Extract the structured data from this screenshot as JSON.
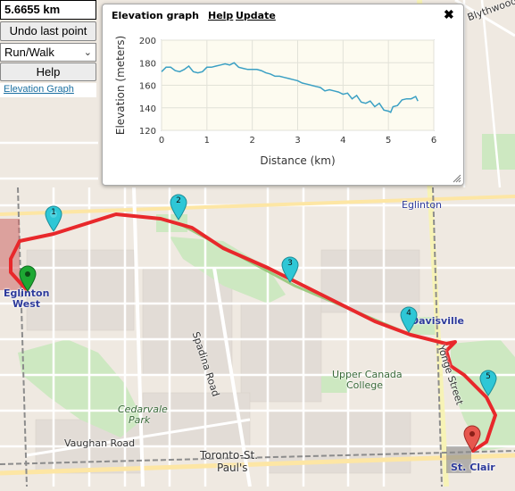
{
  "controls": {
    "distance": "5.6655 km",
    "undo_label": "Undo last point",
    "mode_value": "Run/Walk",
    "help_label": "Help",
    "elevation_link": "Elevation Graph"
  },
  "elevation_window": {
    "title": "Elevation graph",
    "help_link": "Help",
    "update_link": "Update",
    "close_symbol": "✖"
  },
  "chart_data": {
    "type": "line",
    "xlabel": "Distance (km)",
    "ylabel": "Elevation (meters)",
    "xlim": [
      0,
      6
    ],
    "ylim": [
      120,
      200
    ],
    "xticks": [
      "0",
      "1",
      "2",
      "3",
      "4",
      "5",
      "6"
    ],
    "yticks": [
      "120",
      "140",
      "160",
      "180",
      "200"
    ],
    "grid": true,
    "color": "#3ba0c4",
    "x": [
      0,
      0.1,
      0.2,
      0.3,
      0.4,
      0.5,
      0.6,
      0.7,
      0.8,
      0.9,
      1.0,
      1.1,
      1.2,
      1.3,
      1.4,
      1.5,
      1.6,
      1.7,
      1.8,
      1.9,
      2.0,
      2.1,
      2.2,
      2.3,
      2.4,
      2.5,
      2.6,
      2.7,
      2.8,
      2.9,
      3.0,
      3.1,
      3.2,
      3.3,
      3.4,
      3.5,
      3.6,
      3.7,
      3.8,
      3.9,
      4.0,
      4.1,
      4.2,
      4.3,
      4.4,
      4.5,
      4.6,
      4.7,
      4.8,
      4.9,
      5.0,
      5.05,
      5.1,
      5.2,
      5.3,
      5.4,
      5.5,
      5.6,
      5.65
    ],
    "y": [
      172,
      176,
      176,
      173,
      172,
      174,
      177,
      172,
      171,
      172,
      176,
      176,
      177,
      178,
      179,
      178,
      180,
      176,
      175,
      174,
      174,
      174,
      173,
      171,
      170,
      168,
      168,
      167,
      166,
      165,
      164,
      162,
      161,
      160,
      159,
      158,
      155,
      156,
      155,
      154,
      152,
      153,
      148,
      151,
      145,
      144,
      146,
      141,
      144,
      138,
      137,
      136,
      141,
      142,
      147,
      148,
      148,
      150,
      146
    ]
  },
  "map": {
    "labels": {
      "eglinton": "Eglinton",
      "eglinton_west_1": "Eglinton",
      "eglinton_west_2": "West",
      "davisville": "Davisville",
      "upper_canada_1": "Upper Canada",
      "upper_canada_2": "College",
      "st_clair": "St. Clair",
      "spadina": "Spadina Road",
      "yonge": "Yonge Street",
      "cedarvale_1": "Cedarvale",
      "cedarvale_2": "Park",
      "vaughan": "Vaughan Road",
      "toronto_st_pauls_1": "Toronto-St.",
      "toronto_st_pauls_2": "Paul's",
      "blythwood": "Blythwood Ro"
    },
    "markers": [
      {
        "num": "1"
      },
      {
        "num": "2"
      },
      {
        "num": "3"
      },
      {
        "num": "4"
      },
      {
        "num": "5"
      }
    ],
    "colors": {
      "route": "#e8282b",
      "waypoint": "#2ec7d6",
      "start": "#1da833",
      "end": "#e7574e"
    }
  }
}
